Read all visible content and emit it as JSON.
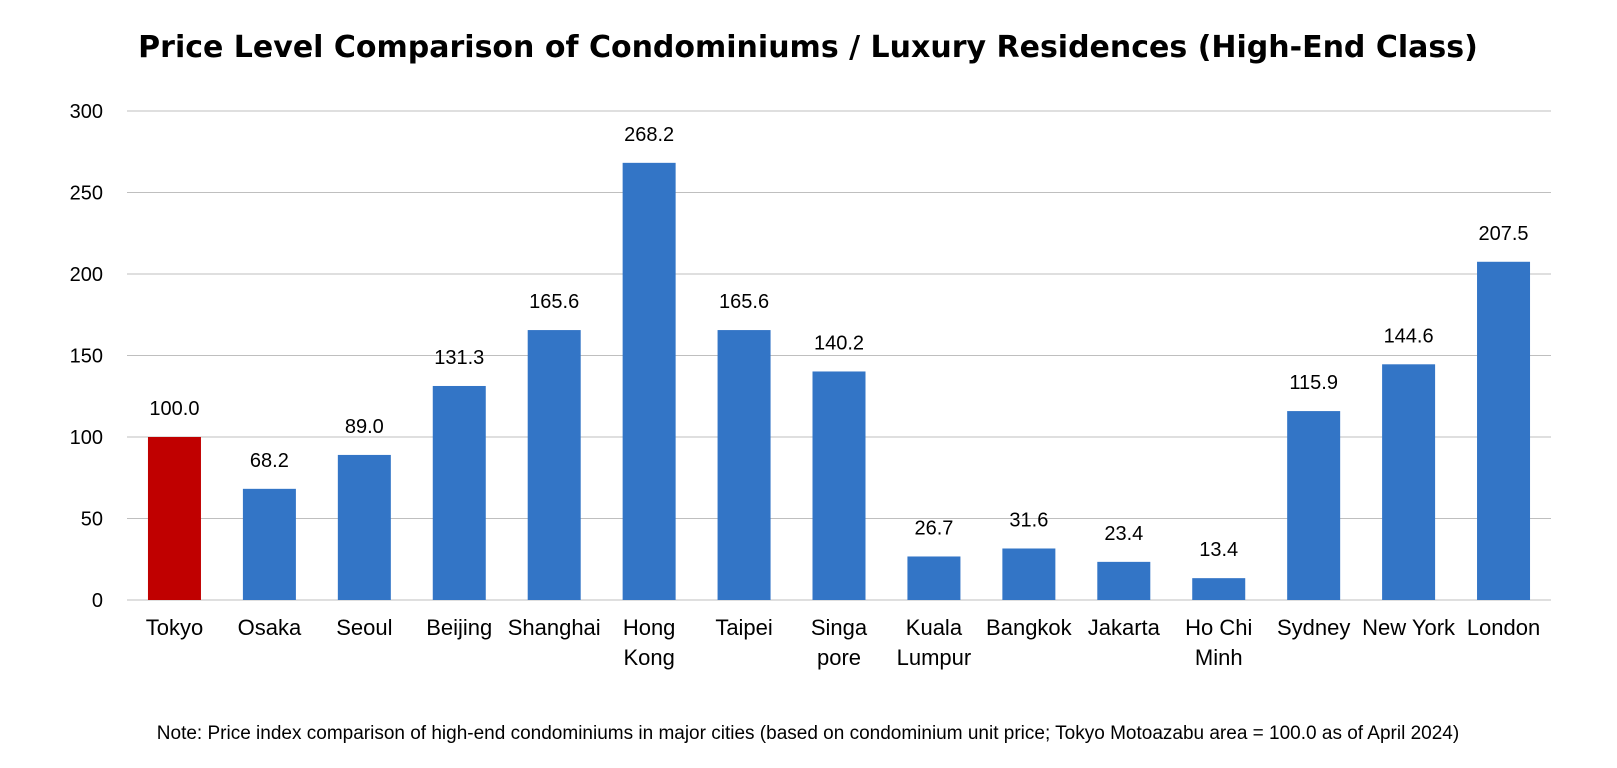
{
  "chart_data": {
    "type": "bar",
    "title": "Price Level Comparison of Condominiums / Luxury Residences (High-End Class)",
    "note": "Note: Price index comparison of high-end condominiums in major cities (based on condominium unit price; Tokyo Motoazabu area = 100.0 as of April 2024)",
    "xlabel": "",
    "ylabel": "",
    "ylim": [
      0,
      300
    ],
    "yticks": [
      "0",
      "50",
      "100",
      "150",
      "200",
      "250",
      "300"
    ],
    "grid": true,
    "categories": [
      [
        "Tokyo"
      ],
      [
        "Osaka"
      ],
      [
        "Seoul"
      ],
      [
        "Beijing"
      ],
      [
        "Shanghai"
      ],
      [
        "Hong",
        "Kong"
      ],
      [
        "Taipei"
      ],
      [
        "Singa",
        "pore"
      ],
      [
        "Kuala",
        "Lumpur"
      ],
      [
        "Bangkok"
      ],
      [
        "Jakarta"
      ],
      [
        "Ho Chi",
        "Minh"
      ],
      [
        "Sydney"
      ],
      [
        "New York"
      ],
      [
        "London"
      ]
    ],
    "values": [
      100.0,
      68.2,
      89.0,
      131.3,
      165.6,
      268.2,
      165.6,
      140.2,
      26.7,
      31.6,
      23.4,
      13.4,
      115.9,
      144.6,
      207.5
    ],
    "value_labels": [
      "100.0",
      "68.2",
      "89.0",
      "131.3",
      "165.6",
      "268.2",
      "165.6",
      "140.2",
      "26.7",
      "31.6",
      "23.4",
      "13.4",
      "115.9",
      "144.6",
      "207.5"
    ],
    "colors": {
      "default": "#3375c6",
      "highlight": "#c00000",
      "highlight_index": 0
    }
  }
}
